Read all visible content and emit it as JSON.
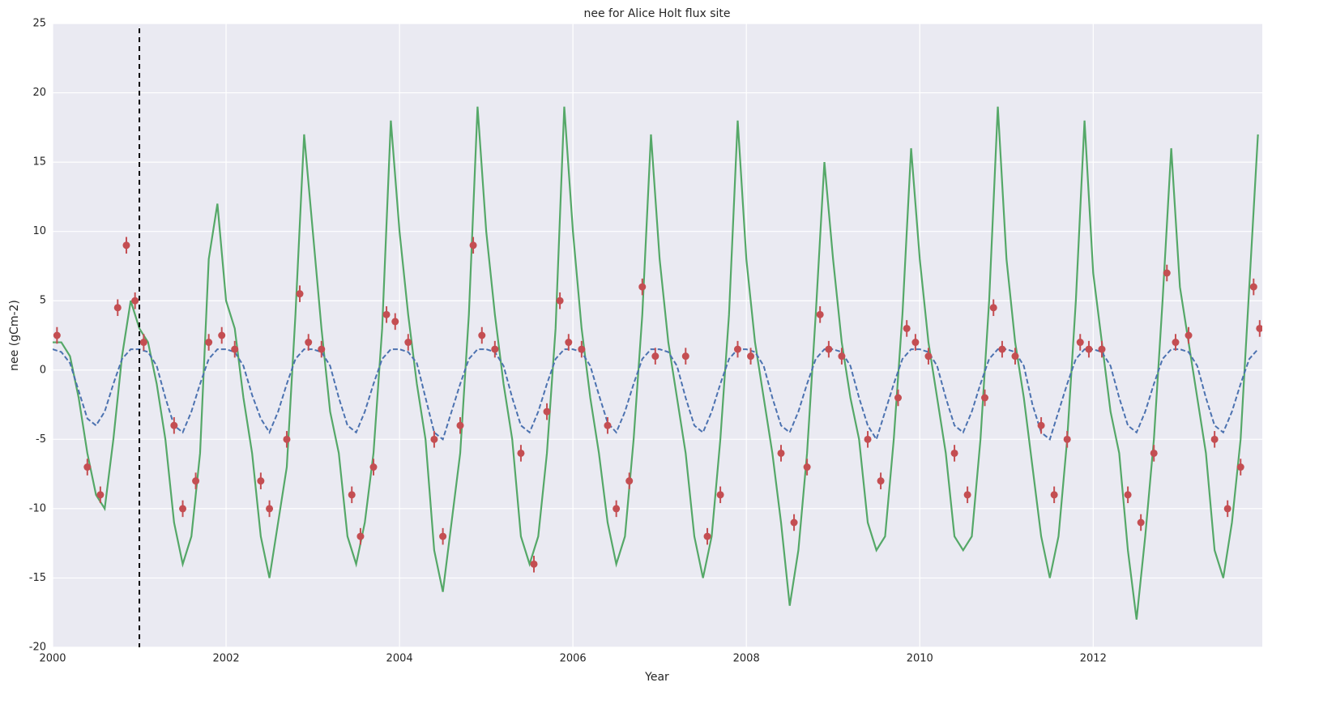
{
  "chart_data": {
    "type": "line",
    "title": "nee for Alice Holt flux site",
    "xlabel": "Year",
    "ylabel": "nee (gCm-2)",
    "xlim": [
      2000,
      2013.95
    ],
    "ylim": [
      -20,
      25
    ],
    "xticks": [
      2000,
      2002,
      2004,
      2006,
      2008,
      2010,
      2012
    ],
    "yticks": [
      -20,
      -15,
      -10,
      -5,
      0,
      5,
      10,
      15,
      20,
      25
    ],
    "grid": true,
    "background": "#eaeaf2",
    "vline": 2001,
    "x": [
      2000.0,
      2000.1,
      2000.2,
      2000.3,
      2000.4,
      2000.5,
      2000.6,
      2000.7,
      2000.8,
      2000.9,
      2001.0,
      2001.1,
      2001.2,
      2001.3,
      2001.4,
      2001.5,
      2001.6,
      2001.7,
      2001.8,
      2001.9,
      2002.0,
      2002.1,
      2002.2,
      2002.3,
      2002.4,
      2002.5,
      2002.6,
      2002.7,
      2002.8,
      2002.9,
      2003.0,
      2003.1,
      2003.2,
      2003.3,
      2003.4,
      2003.5,
      2003.6,
      2003.7,
      2003.8,
      2003.9,
      2004.0,
      2004.1,
      2004.2,
      2004.3,
      2004.4,
      2004.5,
      2004.6,
      2004.7,
      2004.8,
      2004.9,
      2005.0,
      2005.1,
      2005.2,
      2005.3,
      2005.4,
      2005.5,
      2005.6,
      2005.7,
      2005.8,
      2005.9,
      2006.0,
      2006.1,
      2006.2,
      2006.3,
      2006.4,
      2006.5,
      2006.6,
      2006.7,
      2006.8,
      2006.9,
      2007.0,
      2007.1,
      2007.2,
      2007.3,
      2007.4,
      2007.5,
      2007.6,
      2007.7,
      2007.8,
      2007.9,
      2008.0,
      2008.1,
      2008.2,
      2008.3,
      2008.4,
      2008.5,
      2008.6,
      2008.7,
      2008.8,
      2008.9,
      2009.0,
      2009.1,
      2009.2,
      2009.3,
      2009.4,
      2009.5,
      2009.6,
      2009.7,
      2009.8,
      2009.9,
      2010.0,
      2010.1,
      2010.2,
      2010.3,
      2010.4,
      2010.5,
      2010.6,
      2010.7,
      2010.8,
      2010.9,
      2011.0,
      2011.1,
      2011.2,
      2011.3,
      2011.4,
      2011.5,
      2011.6,
      2011.7,
      2011.8,
      2011.9,
      2012.0,
      2012.1,
      2012.2,
      2012.3,
      2012.4,
      2012.5,
      2012.6,
      2012.7,
      2012.8,
      2012.9,
      2013.0,
      2013.1,
      2013.2,
      2013.3,
      2013.4,
      2013.5,
      2013.6,
      2013.7,
      2013.8,
      2013.9
    ],
    "series": [
      {
        "color": "#55a868",
        "style": "solid",
        "values": [
          2,
          2,
          1,
          -2,
          -6,
          -9,
          -10,
          -5,
          1,
          5,
          3,
          2,
          -1,
          -5,
          -11,
          -14,
          -12,
          -6,
          8,
          12,
          5,
          3,
          -2,
          -6,
          -12,
          -15,
          -11,
          -7,
          4,
          17,
          10,
          3,
          -3,
          -6,
          -12,
          -14,
          -11,
          -6,
          3,
          18,
          10,
          4,
          -1,
          -5,
          -13,
          -16,
          -11,
          -6,
          4,
          19,
          10,
          4,
          -1,
          -5,
          -12,
          -14,
          -12,
          -6,
          3,
          19,
          10,
          3,
          -2,
          -6,
          -11,
          -14,
          -12,
          -5,
          4,
          17,
          8,
          2,
          -2,
          -6,
          -12,
          -15,
          -12,
          -5,
          4,
          18,
          8,
          2,
          -2,
          -6,
          -11,
          -17,
          -13,
          -6,
          4,
          15,
          8,
          2,
          -2,
          -5,
          -11,
          -13,
          -12,
          -5,
          4,
          16,
          8,
          2,
          -2,
          -6,
          -12,
          -13,
          -12,
          -5,
          5,
          19,
          8,
          2,
          -2,
          -7,
          -12,
          -15,
          -12,
          -5,
          5,
          18,
          7,
          2,
          -3,
          -6,
          -13,
          -18,
          -12,
          -5,
          5,
          16,
          6,
          2,
          -2,
          -6,
          -13,
          -15,
          -11,
          -5,
          6,
          17
        ]
      },
      {
        "color": "#4c72b0",
        "style": "dashed",
        "values": [
          1.5,
          1.3,
          0.5,
          -1.5,
          -3.5,
          -4,
          -3,
          -1,
          0.8,
          1.5,
          1.5,
          1.3,
          0.3,
          -2,
          -4,
          -4.5,
          -3,
          -1,
          0.8,
          1.5,
          1.5,
          1.3,
          0.3,
          -1.8,
          -3.5,
          -4.5,
          -3,
          -1,
          0.8,
          1.5,
          1.5,
          1.3,
          0.3,
          -2,
          -4,
          -4.5,
          -3,
          -1,
          0.8,
          1.5,
          1.5,
          1.3,
          0.5,
          -2,
          -4.5,
          -5,
          -3,
          -1,
          0.8,
          1.5,
          1.5,
          1.3,
          0.3,
          -2,
          -4,
          -4.5,
          -3,
          -1,
          0.8,
          1.5,
          1.5,
          1.3,
          0.3,
          -1.8,
          -3.8,
          -4.5,
          -3,
          -1,
          0.8,
          1.5,
          1.5,
          1.3,
          0.3,
          -2,
          -4,
          -4.5,
          -3,
          -1,
          0.8,
          1.5,
          1.5,
          1.3,
          0.3,
          -2,
          -4,
          -4.5,
          -3,
          -1,
          0.8,
          1.5,
          1.5,
          1.3,
          0.3,
          -2,
          -4,
          -5,
          -3,
          -1,
          0.8,
          1.5,
          1.5,
          1.3,
          0.3,
          -2,
          -4,
          -4.5,
          -3,
          -1,
          0.8,
          1.5,
          1.5,
          1.3,
          0.3,
          -2.5,
          -4.5,
          -5,
          -3,
          -1,
          0.8,
          1.5,
          1.5,
          1.3,
          0.3,
          -2,
          -4,
          -4.5,
          -3,
          -1,
          0.8,
          1.5,
          1.5,
          1.3,
          0.3,
          -2,
          -4,
          -4.5,
          -3,
          -1,
          0.8,
          1.5
        ]
      },
      {
        "color": "#c44e52",
        "style": "errorbar",
        "yerr": 0.6,
        "x": [
          2000.05,
          2000.4,
          2000.55,
          2000.75,
          2000.85,
          2000.95,
          2001.05,
          2001.4,
          2001.5,
          2001.65,
          2001.8,
          2001.95,
          2002.1,
          2002.4,
          2002.5,
          2002.7,
          2002.85,
          2002.95,
          2003.1,
          2003.45,
          2003.55,
          2003.7,
          2003.85,
          2003.95,
          2004.1,
          2004.4,
          2004.5,
          2004.7,
          2004.85,
          2004.95,
          2005.1,
          2005.4,
          2005.55,
          2005.7,
          2005.85,
          2005.95,
          2006.1,
          2006.4,
          2006.5,
          2006.65,
          2006.8,
          2006.95,
          2007.3,
          2007.55,
          2007.7,
          2007.9,
          2008.05,
          2008.4,
          2008.55,
          2008.7,
          2008.85,
          2008.95,
          2009.1,
          2009.4,
          2009.55,
          2009.75,
          2009.85,
          2009.95,
          2010.1,
          2010.4,
          2010.55,
          2010.75,
          2010.85,
          2010.95,
          2011.1,
          2011.4,
          2011.55,
          2011.7,
          2011.85,
          2011.95,
          2012.1,
          2012.4,
          2012.55,
          2012.7,
          2012.85,
          2012.95,
          2013.1,
          2013.4,
          2013.55,
          2013.7,
          2013.85,
          2013.92
        ],
        "values": [
          2.5,
          -7,
          -9,
          4.5,
          9,
          5,
          2,
          -4,
          -10,
          -8,
          2,
          2.5,
          1.5,
          -8,
          -10,
          -5,
          5.5,
          2,
          1.5,
          -9,
          -12,
          -7,
          4,
          3.5,
          2,
          -5,
          -12,
          -4,
          9,
          2.5,
          1.5,
          -6,
          -14,
          -3,
          5,
          2,
          1.5,
          -4,
          -10,
          -8,
          6,
          1,
          1,
          -12,
          -9,
          1.5,
          1,
          -6,
          -11,
          -7,
          4,
          1.5,
          1,
          -5,
          -8,
          -2,
          3,
          2,
          1,
          -6,
          -9,
          -2,
          4.5,
          1.5,
          1,
          -4,
          -9,
          -5,
          2,
          1.5,
          1.5,
          -9,
          -11,
          -6,
          7,
          2,
          2.5,
          -5,
          -10,
          -7,
          6,
          3
        ]
      }
    ]
  }
}
